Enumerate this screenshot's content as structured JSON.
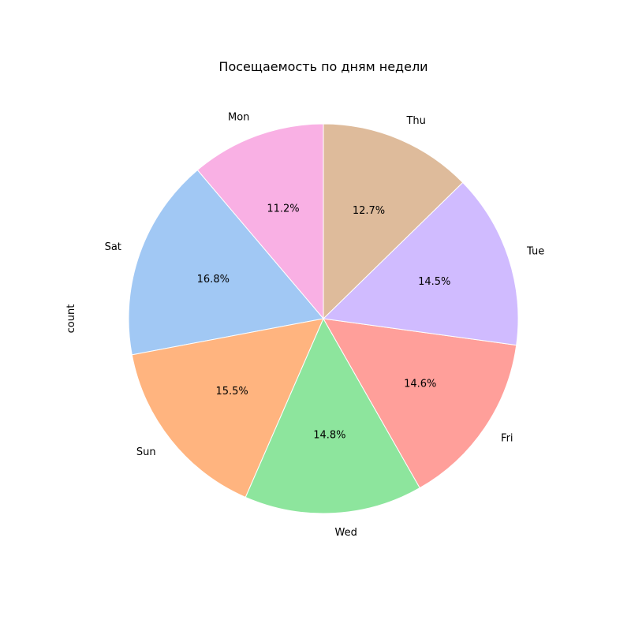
{
  "chart_data": {
    "type": "pie",
    "title": "Посещаемость по дням недели",
    "ylabel": "count",
    "slices": [
      {
        "label": "Mon",
        "percent": 11.2,
        "pct_text": "11.2%",
        "color": "#f9b0e4"
      },
      {
        "label": "Sat",
        "percent": 16.8,
        "pct_text": "16.8%",
        "color": "#a1c8f4"
      },
      {
        "label": "Sun",
        "percent": 15.5,
        "pct_text": "15.5%",
        "color": "#ffb47f"
      },
      {
        "label": "Wed",
        "percent": 14.8,
        "pct_text": "14.8%",
        "color": "#8de59d"
      },
      {
        "label": "Fri",
        "percent": 14.6,
        "pct_text": "14.6%",
        "color": "#ff9f9a"
      },
      {
        "label": "Tue",
        "percent": 14.5,
        "pct_text": "14.5%",
        "color": "#d0bbff"
      },
      {
        "label": "Thu",
        "percent": 12.7,
        "pct_text": "12.7%",
        "color": "#debb9b"
      }
    ],
    "start_angle_deg": 90,
    "direction": "counterclockwise",
    "legend": "none"
  }
}
